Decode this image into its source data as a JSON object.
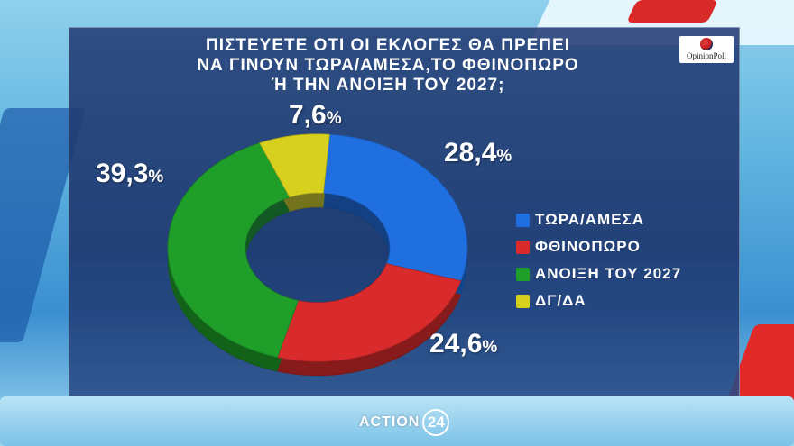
{
  "title_lines": [
    "ΠΙΣΤΕΥΕΤΕ ΟΤΙ ΟΙ ΕΚΛΟΓΕΣ ΘΑ ΠΡΕΠΕΙ",
    "ΝΑ ΓΙΝΟΥΝ ΤΩΡΑ/ΑΜΕΣΑ,ΤΟ ΦΘΙΝΟΠΩΡΟ",
    "Ή ΤΗΝ ΑΝΟΙΞΗ ΤΟΥ 2027;"
  ],
  "logo": {
    "text": "OpinionPoll"
  },
  "brand": {
    "text": "ACTION",
    "number": "24"
  },
  "percent_sign": "%",
  "chart_data": {
    "type": "pie",
    "variant": "donut",
    "title": "ΠΙΣΤΕΥΕΤΕ ΟΤΙ ΟΙ ΕΚΛΟΓΕΣ ΘΑ ΠΡΕΠΕΙ ΝΑ ΓΙΝΟΥΝ ΤΩΡΑ/ΑΜΕΣΑ,ΤΟ ΦΘΙΝΟΠΩΡΟ Ή ΤΗΝ ΑΝΟΙΞΗ ΤΟΥ 2027;",
    "categories": [
      "ΤΩΡΑ/ΑΜΕΣΑ",
      "ΦΘΙΝΟΠΩΡΟ",
      "ΑΝΟΙΞΗ ΤΟΥ 2027",
      "ΔΓ/ΔΑ"
    ],
    "values": [
      28.4,
      24.6,
      39.3,
      7.6
    ],
    "value_labels": [
      "28,4",
      "24,6",
      "39,3",
      "7,6"
    ],
    "colors": [
      "#1f6fe0",
      "#d92b2b",
      "#1f9e2a",
      "#d7d01e"
    ],
    "legend_position": "right"
  }
}
